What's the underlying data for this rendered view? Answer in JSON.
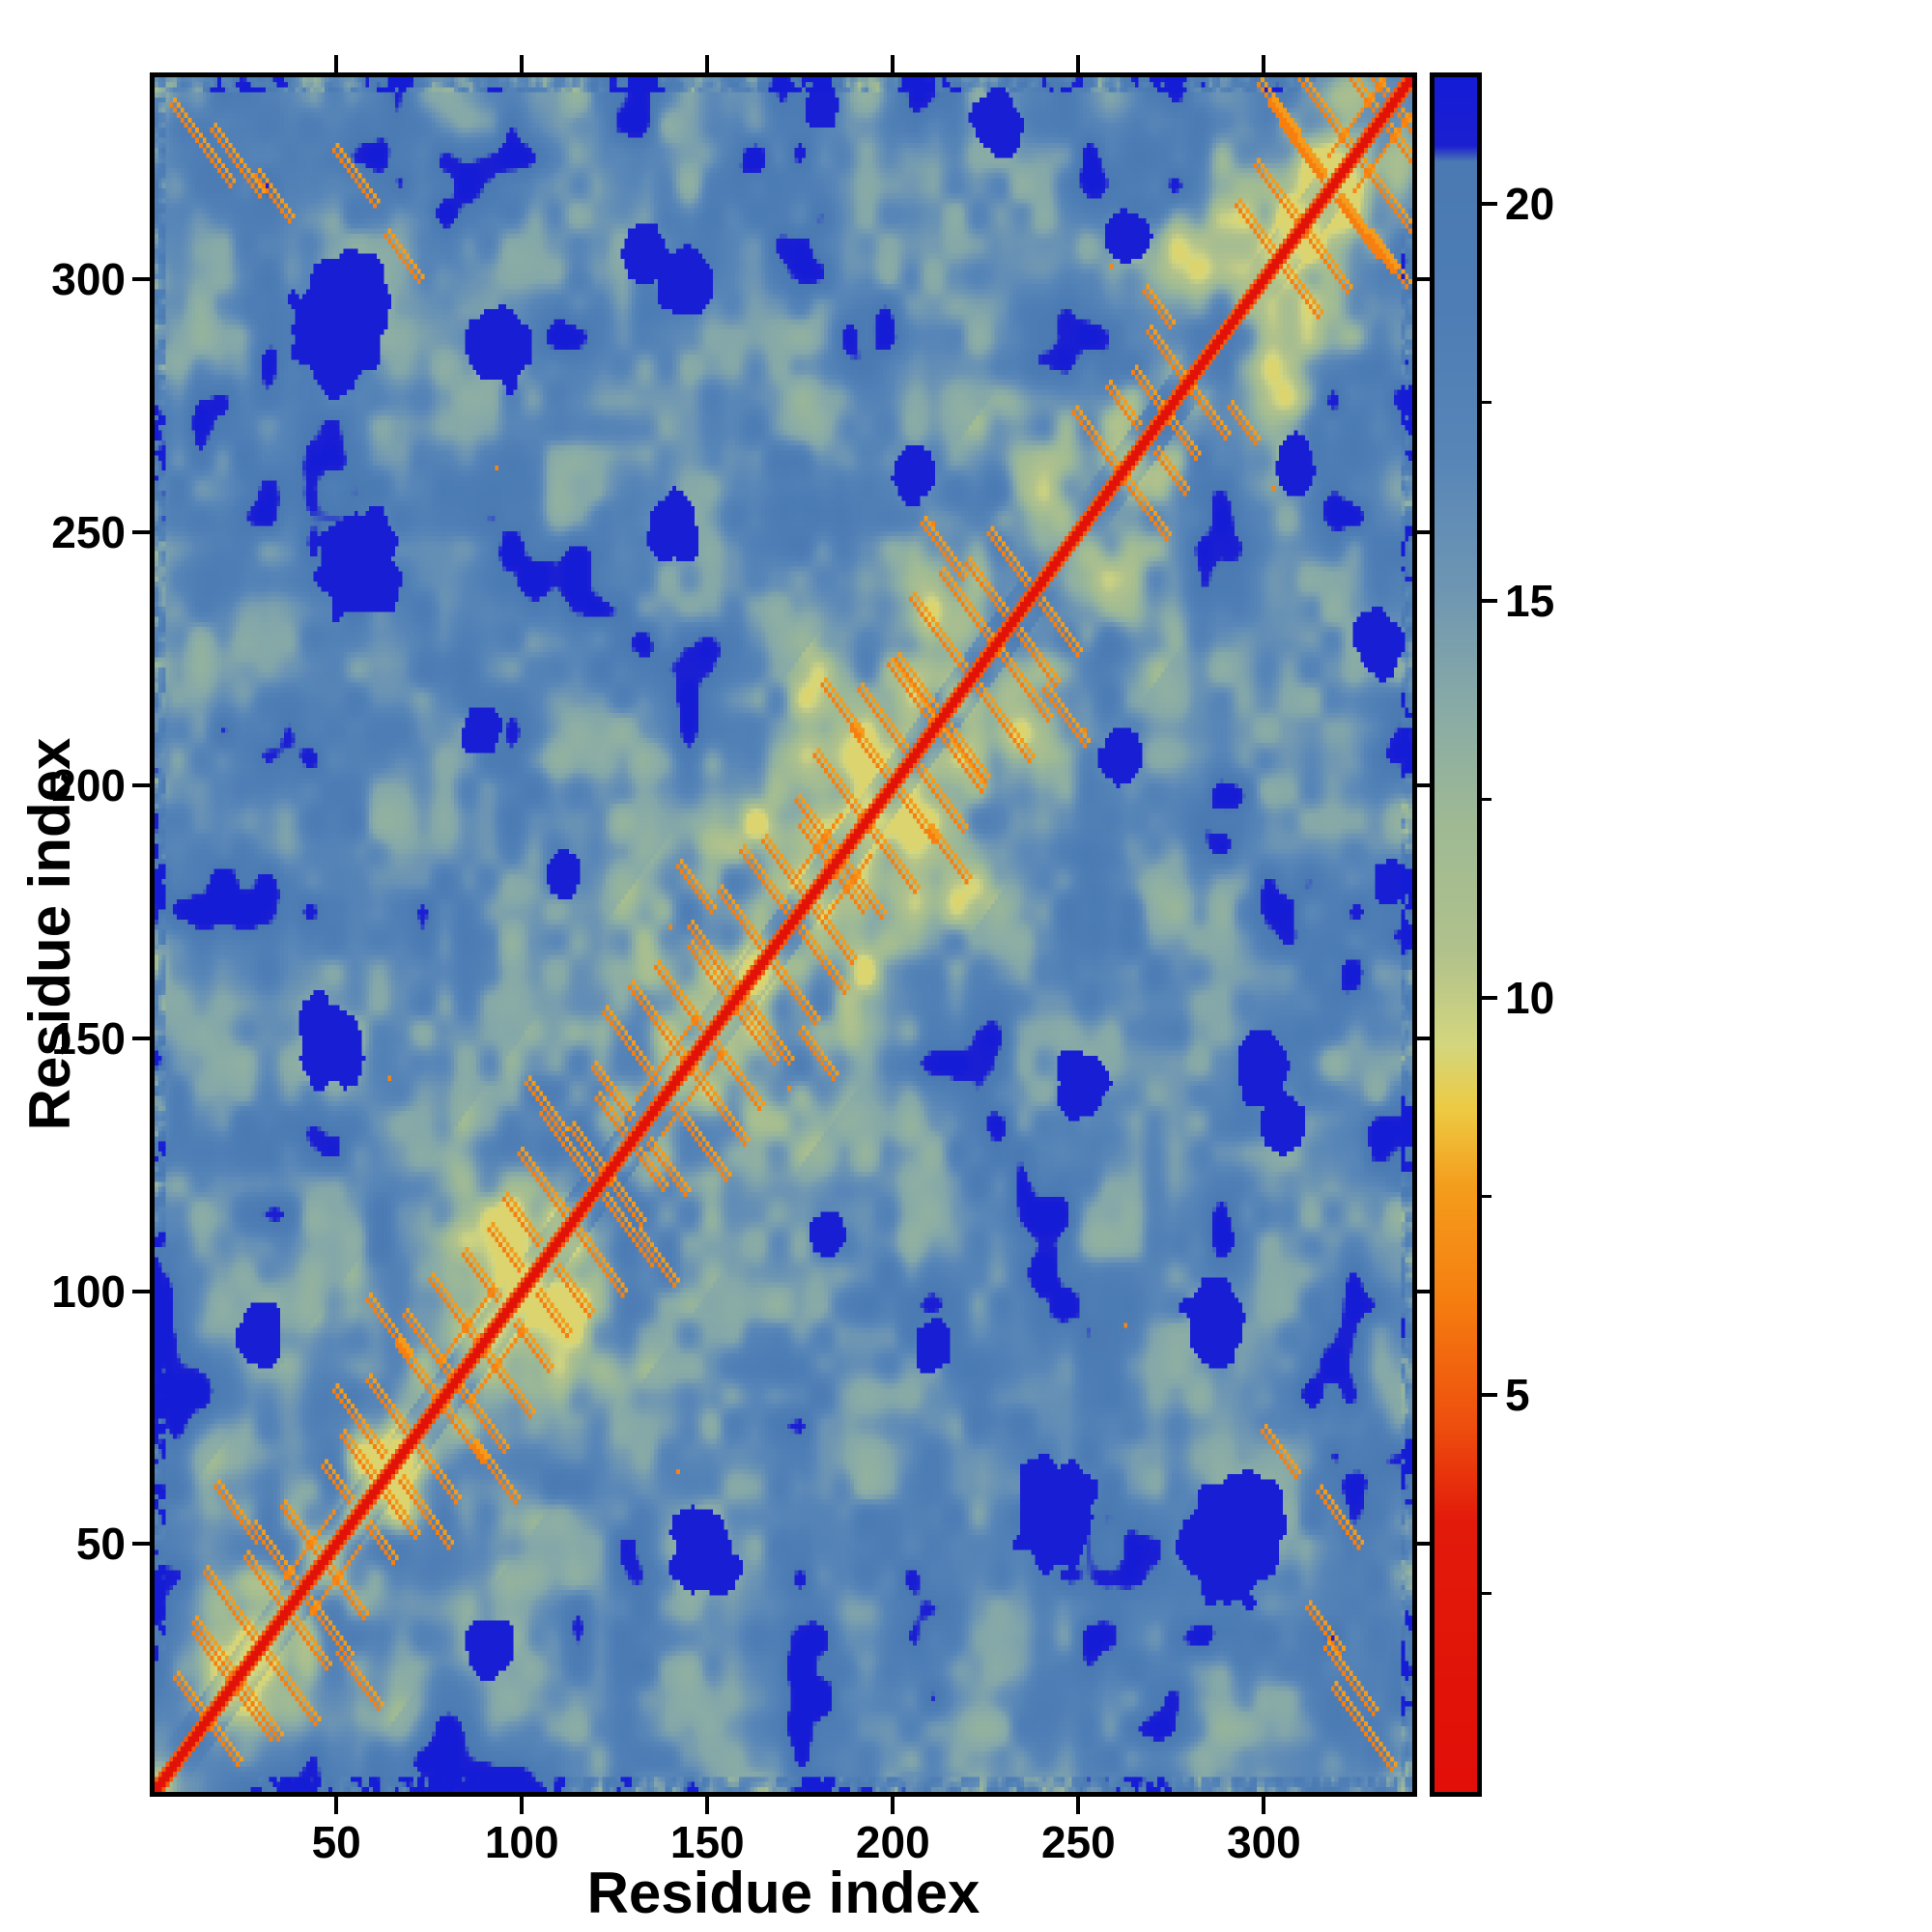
{
  "chart_data": {
    "type": "heatmap",
    "title": "",
    "xlabel": "Residue index",
    "ylabel": "Residue index",
    "x_range": [
      1,
      340
    ],
    "y_range": [
      1,
      340
    ],
    "x_ticks": [
      50,
      100,
      150,
      200,
      250,
      300
    ],
    "y_ticks": [
      50,
      100,
      150,
      200,
      250,
      300
    ],
    "n": 340,
    "grid": false,
    "legend": "colorbar-right",
    "colorbar": {
      "min": 0,
      "max": 21.6,
      "major_ticks": [
        5,
        10,
        15,
        20
      ],
      "minor_ticks": [
        2.5,
        7.5,
        12.5,
        17.5
      ],
      "position": "right"
    },
    "colormap_stops": [
      {
        "v": 0.0,
        "c": "#e10f08"
      },
      {
        "v": 3.4,
        "c": "#e31b0b"
      },
      {
        "v": 4.6,
        "c": "#ee4f0e"
      },
      {
        "v": 6.2,
        "c": "#f67f10"
      },
      {
        "v": 7.6,
        "c": "#f59d1c"
      },
      {
        "v": 8.6,
        "c": "#eecb43"
      },
      {
        "v": 9.4,
        "c": "#d4d77e"
      },
      {
        "v": 10.6,
        "c": "#b1c28c"
      },
      {
        "v": 12.2,
        "c": "#9fba94"
      },
      {
        "v": 13.6,
        "c": "#8aaca6"
      },
      {
        "v": 15.2,
        "c": "#6e96b3"
      },
      {
        "v": 16.8,
        "c": "#5886b8"
      },
      {
        "v": 18.6,
        "c": "#4e7eb5"
      },
      {
        "v": 20.55,
        "c": "#4b7ab3"
      },
      {
        "v": 20.75,
        "c": "#1c20d2"
      },
      {
        "v": 21.6,
        "c": "#151cd6"
      }
    ],
    "diagonal_value": 0,
    "description": "Symmetric residue-residue distance map (340 x 340). Bright red main diagonal (zero distance), vivid orange anti-diagonal hairpin streaks repeating along the diagonal, sage-green short-range contact mottling within ~40 residues of the diagonal and at the N/C-terminal corners, steel-blue mid-range background, and hard-edged dark-navy blobs where distances exceed ~20.7 (clipped at colormap maximum).",
    "generator": {
      "blob_noise_scale": 16,
      "detail_noise_scale": 6,
      "base_value": 17.2,
      "noise_amplitude": 15,
      "near_diagonal_width": 45,
      "corner_width": 40,
      "navy_threshold": 20.7,
      "hairpin_clusters": [
        {
          "c": 15,
          "k": 2,
          "sp": 7,
          "L": 9,
          "far": null,
          "par": null
        },
        {
          "c": 27,
          "k": 3,
          "sp": 7,
          "L": 12,
          "far": 22,
          "par": null
        },
        {
          "c": 40,
          "k": 2,
          "sp": 7,
          "L": 9,
          "far": null,
          "par": 7
        },
        {
          "c": 55,
          "k": 2,
          "sp": 6,
          "L": 8,
          "far": null,
          "par": null
        },
        {
          "c": 68,
          "k": 3,
          "sp": 7,
          "L": 12,
          "far": 18,
          "par": null
        },
        {
          "c": 82,
          "k": 2,
          "sp": 7,
          "L": 10,
          "far": null,
          "par": 8
        },
        {
          "c": 95,
          "k": 2,
          "sp": 6,
          "L": 7,
          "far": null,
          "par": null
        },
        {
          "c": 110,
          "k": 3,
          "sp": 7,
          "L": 11,
          "far": 20,
          "par": null
        },
        {
          "c": 123,
          "k": 2,
          "sp": 6,
          "L": 9,
          "far": null,
          "par": null
        },
        {
          "c": 135,
          "k": 3,
          "sp": 7,
          "L": 12,
          "far": null,
          "par": 7
        },
        {
          "c": 150,
          "k": 2,
          "sp": 7,
          "L": 10,
          "far": 24,
          "par": null
        },
        {
          "c": 163,
          "k": 3,
          "sp": 7,
          "L": 12,
          "far": null,
          "par": null
        },
        {
          "c": 177,
          "k": 2,
          "sp": 7,
          "L": 9,
          "far": null,
          "par": 8
        },
        {
          "c": 190,
          "k": 3,
          "sp": 7,
          "L": 11,
          "far": 19,
          "par": null
        },
        {
          "c": 205,
          "k": 2,
          "sp": 7,
          "L": 10,
          "far": null,
          "par": null
        },
        {
          "c": 218,
          "k": 3,
          "sp": 7,
          "L": 12,
          "far": 22,
          "par": null
        },
        {
          "c": 232,
          "k": 2,
          "sp": 6,
          "L": 8,
          "far": null,
          "par": null
        },
        {
          "c": 262,
          "k": 2,
          "sp": 6,
          "L": 9,
          "far": null,
          "par": null
        },
        {
          "c": 274,
          "k": 2,
          "sp": 6,
          "L": 8,
          "far": 16,
          "par": null
        },
        {
          "c": 308,
          "k": 3,
          "sp": 7,
          "L": 11,
          "far": 20,
          "par": null
        },
        {
          "c": 322,
          "k": 3,
          "sp": 7,
          "L": 12,
          "far": null,
          "par": 7
        },
        {
          "c": 334,
          "k": 2,
          "sp": 5,
          "L": 7,
          "far": null,
          "par": null
        }
      ],
      "corner_segments": [
        [
          4,
          334,
          16
        ],
        [
          15,
          329,
          13
        ],
        [
          27,
          320,
          9
        ],
        [
          48,
          325,
          11
        ],
        [
          62,
          308,
          9
        ]
      ],
      "navy_blobs": [
        [
          50,
          291,
          13
        ],
        [
          93,
          286,
          8
        ],
        [
          143,
          299,
          7
        ],
        [
          55,
          243,
          11
        ],
        [
          132,
          305,
          6
        ],
        [
          47,
          148,
          9
        ],
        [
          227,
          331,
          7
        ],
        [
          28,
          90,
          6
        ],
        [
          110,
          181,
          5
        ],
        [
          205,
          261,
          6
        ],
        [
          140,
          250,
          7
        ],
        [
          180,
          334,
          5
        ],
        [
          262,
          308,
          6
        ],
        [
          88,
          210,
          5
        ]
      ],
      "speckles": [
        [
          139,
          171
        ],
        [
          63,
          141
        ],
        [
          210,
          251
        ],
        [
          92,
          262
        ],
        [
          302,
          258
        ]
      ]
    }
  }
}
